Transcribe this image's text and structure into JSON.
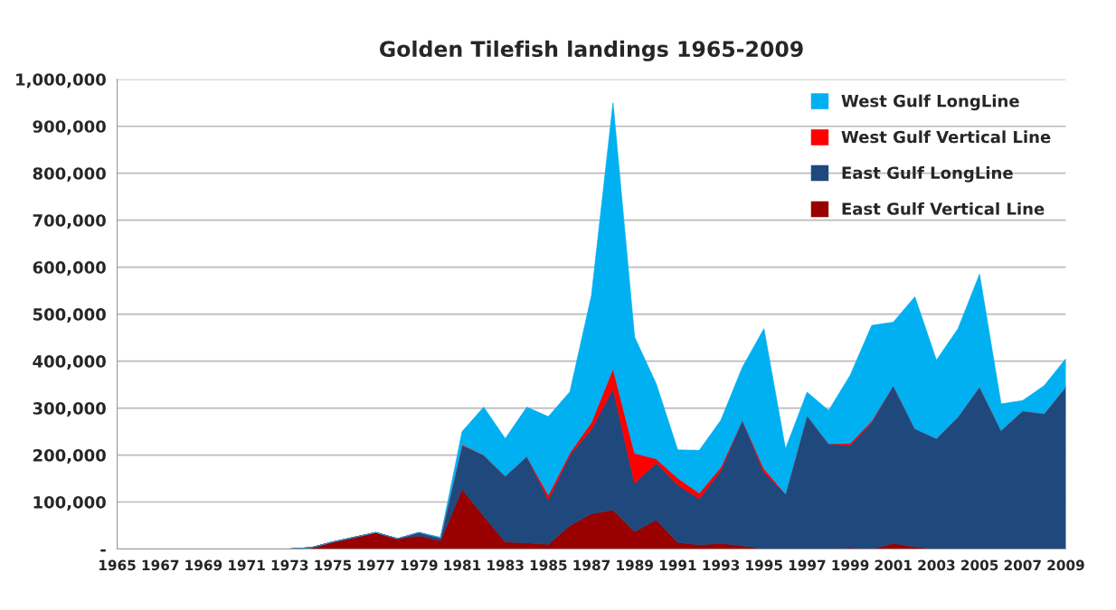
{
  "chart_data": {
    "type": "area",
    "title": "Golden Tilefish landings 1965-2009",
    "stacked": true,
    "categories": [
      "1965",
      null,
      "1967",
      null,
      "1969",
      null,
      "1971",
      null,
      "1973",
      null,
      "1975",
      null,
      "1977",
      null,
      "1979",
      null,
      "1981",
      null,
      "1983",
      null,
      "1985",
      null,
      "1987",
      null,
      "1989",
      null,
      "1991",
      null,
      "1993",
      null,
      "1995",
      null,
      "1997",
      null,
      "1999",
      null,
      "2001",
      null,
      "2003",
      null,
      "2005",
      null,
      "2007",
      null,
      "2009"
    ],
    "series": [
      {
        "name": "East Gulf Vertical Line",
        "color": "#990000",
        "values": [
          0,
          0,
          0,
          0,
          0,
          0,
          0,
          0,
          0,
          3000,
          15000,
          25000,
          35000,
          22000,
          28000,
          18000,
          127000,
          70000,
          15000,
          13000,
          10000,
          50000,
          75000,
          83000,
          37000,
          62000,
          14000,
          9000,
          12000,
          7000,
          0,
          0,
          0,
          0,
          3000,
          0,
          12000,
          5000,
          0,
          0,
          0,
          0,
          0,
          0,
          0
        ]
      },
      {
        "name": "East Gulf LongLine",
        "color": "#1f497d",
        "values": [
          0,
          0,
          0,
          0,
          0,
          0,
          0,
          0,
          0,
          0,
          0,
          0,
          0,
          0,
          7000,
          5000,
          93000,
          130000,
          140000,
          184000,
          95000,
          150000,
          180000,
          258000,
          103000,
          121000,
          122000,
          98000,
          155000,
          267000,
          163000,
          117000,
          284000,
          224000,
          217000,
          270000,
          336000,
          251000,
          235000,
          281000,
          345000,
          252000,
          294000,
          288000,
          345000
        ]
      },
      {
        "name": "West Gulf Vertical Line",
        "color": "#ff0000",
        "values": [
          0,
          0,
          0,
          0,
          0,
          0,
          0,
          0,
          0,
          0,
          0,
          0,
          0,
          0,
          0,
          0,
          2000,
          0,
          0,
          0,
          10000,
          5000,
          15000,
          43000,
          64000,
          9000,
          15000,
          12000,
          7000,
          0,
          8000,
          0,
          0,
          0,
          5000,
          3000,
          0,
          0,
          0,
          0,
          0,
          0,
          0,
          0,
          0
        ]
      },
      {
        "name": "West Gulf LongLine",
        "color": "#00b0f0",
        "values": [
          0,
          0,
          0,
          0,
          0,
          0,
          0,
          0,
          0,
          0,
          0,
          0,
          0,
          0,
          0,
          2000,
          28000,
          102000,
          80000,
          105000,
          167000,
          130000,
          270000,
          566000,
          247000,
          160000,
          60000,
          91000,
          100000,
          113000,
          298000,
          96000,
          50000,
          71000,
          145000,
          203000,
          135000,
          281000,
          167000,
          188000,
          240000,
          57000,
          22000,
          60000,
          60000
        ]
      }
    ],
    "ylim": [
      0,
      1000000
    ],
    "yticks": [
      {
        "value": 0,
        "label": "-"
      },
      {
        "value": 100000,
        "label": "100,000"
      },
      {
        "value": 200000,
        "label": "200,000"
      },
      {
        "value": 300000,
        "label": "300,000"
      },
      {
        "value": 400000,
        "label": "400,000"
      },
      {
        "value": 500000,
        "label": "500,000"
      },
      {
        "value": 600000,
        "label": "600,000"
      },
      {
        "value": 700000,
        "label": "700,000"
      },
      {
        "value": 800000,
        "label": "800,000"
      },
      {
        "value": 900000,
        "label": "900,000"
      },
      {
        "value": 1000000,
        "label": "1,000,000"
      }
    ],
    "grid": "y",
    "legend": "top right"
  }
}
